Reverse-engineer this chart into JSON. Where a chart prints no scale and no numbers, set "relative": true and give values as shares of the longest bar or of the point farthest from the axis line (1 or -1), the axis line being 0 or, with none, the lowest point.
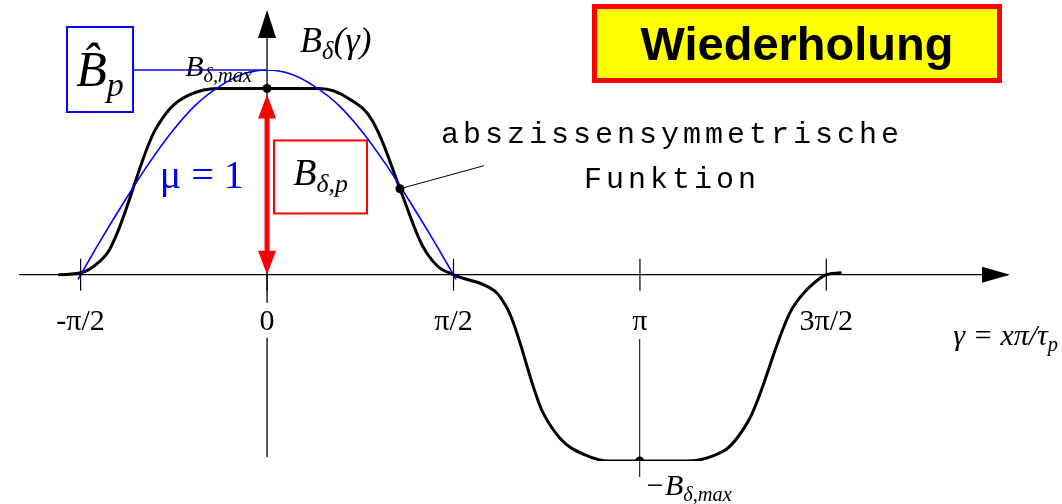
{
  "chart_data": {
    "type": "line",
    "title": "Wiederholung",
    "ylabel": "B$_{δ}$(γ)",
    "xlabel": "γ = xπ/τ$_{p}$",
    "relative": true,
    "line_style": "solid",
    "xlim": [
      -2.09,
      6.26
    ],
    "xticks": [
      {
        "value": -1.571,
        "label": "-π/2"
      },
      0,
      {
        "value": 1.571,
        "label": "π/2"
      },
      {
        "value": 3.142,
        "label": "π"
      },
      {
        "value": 4.712,
        "label": "3π/2"
      }
    ],
    "series": [
      {
        "color": "#000000",
        "marker": "none",
        "x": [
          -1.75,
          -1.57,
          -1.42,
          -1.33,
          -1.28,
          -0.94,
          -0.82,
          -0.65,
          -0.42,
          0,
          0.44,
          0.69,
          0.89,
          0.95,
          1.12,
          1.32,
          1.44,
          1.57,
          1.92,
          2.02,
          2.33,
          2.47,
          2.68,
          2.88,
          3.14,
          3.54,
          3.85,
          4.05,
          4.43,
          4.61,
          4.71,
          4.83
        ],
        "values": [
          0,
          0.01,
          0.06,
          0.12,
          0.18,
          0.71,
          0.81,
          0.88,
          0.91,
          0.91,
          0.91,
          0.86,
          0.75,
          0.68,
          0.42,
          0.13,
          0.04,
          0,
          -0.08,
          -0.16,
          -0.68,
          -0.8,
          -0.88,
          -0.91,
          -0.91,
          -0.91,
          -0.86,
          -0.72,
          -0.16,
          -0.04,
          0,
          0.01
        ]
      },
      {
        "name": "μ = 1",
        "color": "#0000ff",
        "marker": "none",
        "x": [
          -1.59,
          -1.4,
          -1.2,
          -1,
          -0.8,
          -0.6,
          -0.4,
          -0.2,
          0,
          0.2,
          0.4,
          0.6,
          0.8,
          1,
          1.2,
          1.4,
          1.59
        ],
        "values": [
          -0.02,
          0.17,
          0.36,
          0.54,
          0.7,
          0.83,
          0.92,
          0.98,
          1,
          0.98,
          0.92,
          0.83,
          0.7,
          0.54,
          0.36,
          0.17,
          -0.02
        ]
      },
      {
        "type": "scatter",
        "color": "#000000",
        "marker": "circle",
        "x": [
          0,
          1.12,
          3.14
        ],
        "values": [
          0.91,
          0.42,
          -0.91
        ]
      }
    ],
    "annotations": [
      {
        "text": "B̂$_{p}$",
        "x": 0,
        "y": 1
      },
      {
        "text": "B$_{δ,max}$",
        "x": 0,
        "y": 0.91
      },
      {
        "text": "B$_{δ,p}$",
        "x": 0,
        "y": 0.91
      },
      {
        "text": "abszissensymmetrische Funktion",
        "x": 1.12,
        "y": 0.42
      },
      {
        "text": "−B$_{δ,max}$",
        "x": 3.14,
        "y": -0.91
      }
    ]
  }
}
